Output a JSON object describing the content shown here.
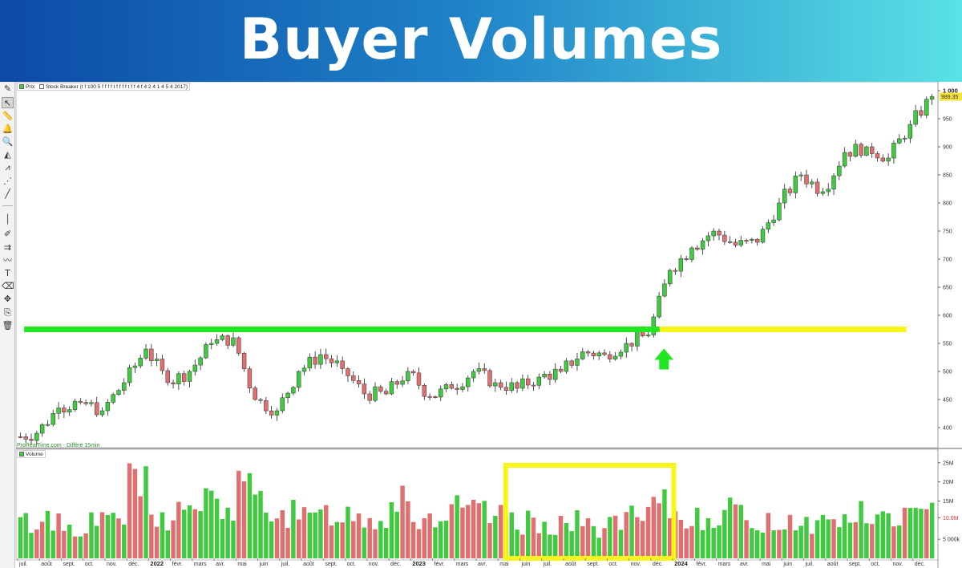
{
  "banner": {
    "title": "Buyer Volumes"
  },
  "toolbar": {
    "tools": [
      {
        "name": "pencil-icon",
        "glyph": "✎"
      },
      {
        "name": "cursor-icon",
        "glyph": "↖"
      },
      {
        "name": "ruler-icon",
        "glyph": "📏"
      },
      {
        "name": "bell-icon",
        "glyph": "🔔"
      },
      {
        "name": "zoom-icon",
        "glyph": "🔍"
      },
      {
        "name": "fibonacci-icon",
        "glyph": "◭"
      },
      {
        "name": "trend-tool-icon",
        "glyph": "⩘"
      },
      {
        "name": "anchor-line-icon",
        "glyph": "⋰"
      },
      {
        "name": "line-icon",
        "glyph": "╱"
      },
      {
        "name": "vertical-line-icon",
        "glyph": "│"
      },
      {
        "name": "brush-icon",
        "glyph": "✐"
      },
      {
        "name": "horizontal-line-icon",
        "glyph": "⇉"
      },
      {
        "name": "wave-icon",
        "glyph": "〰"
      },
      {
        "name": "text-icon",
        "glyph": "T"
      },
      {
        "name": "eraser-icon",
        "glyph": "⌫"
      },
      {
        "name": "move-icon",
        "glyph": "✥"
      },
      {
        "name": "copy-icon",
        "glyph": "⎘"
      },
      {
        "name": "trash-icon",
        "glyph": "🗑"
      }
    ]
  },
  "price_panel": {
    "legend_price": "Prix",
    "legend_indicator": "Stock Breaker (t f 100 5 f f f f t f f f f t f f 4 f 4 2 4 1 4 5 4 2017)",
    "credit": "ProRealTime.com - Différé 15min",
    "last_price": "989.35",
    "colors": {
      "up": "#3fca3f",
      "down": "#e06f6f",
      "support_line": "#22e622",
      "projection_line": "#f6f61a",
      "arrow": "#22e622",
      "highlight_box": "#f6f61a"
    }
  },
  "volume_panel": {
    "legend": "Volume",
    "last_volume": "10.6M"
  },
  "chart_data": [
    {
      "type": "candlestick",
      "title": "",
      "ylim": [
        370,
        1010
      ],
      "y_ticks": [
        "1 000",
        "950",
        "900",
        "850",
        "800",
        "750",
        "700",
        "650",
        "600",
        "550",
        "500",
        "450",
        "400"
      ],
      "x_month_labels": [
        "juil.",
        "août",
        "sept.",
        "oct.",
        "nov.",
        "déc.",
        "2022",
        "févr.",
        "mars",
        "avr.",
        "mai",
        "juin",
        "juil.",
        "août",
        "sept.",
        "oct.",
        "nov.",
        "déc.",
        "2023",
        "févr.",
        "mars",
        "avr.",
        "mai",
        "juin",
        "juil.",
        "août",
        "sept.",
        "oct.",
        "nov.",
        "déc.",
        "2024",
        "févr.",
        "mars",
        "avr.",
        "mai",
        "juin",
        "juil.",
        "août",
        "sept.",
        "oct.",
        "nov.",
        "déc."
      ],
      "bold_labels": [
        "2022",
        "2023",
        "2024"
      ],
      "support_level": 575,
      "support_span": [
        "2021-07",
        "2023-12"
      ],
      "projection_span": [
        "2023-12",
        "2024-12"
      ],
      "breakout_arrow_month": "2023-12",
      "monthly_close": [
        390,
        435,
        445,
        430,
        480,
        540,
        480,
        500,
        550,
        560,
        450,
        430,
        500,
        530,
        505,
        460,
        460,
        500,
        455,
        470,
        500,
        480,
        470,
        490,
        500,
        535,
        530,
        550,
        565,
        680,
        720,
        750,
        725,
        730,
        800,
        850,
        820,
        890,
        900,
        880,
        940,
        989.35
      ]
    },
    {
      "type": "bar",
      "title": "",
      "ylabel": "",
      "ylim": [
        0,
        26
      ],
      "unit": "M",
      "y_ticks": [
        "25M",
        "20M",
        "15M",
        "10.6M",
        "5 000k"
      ],
      "highlight_range": [
        "2023-05",
        "2023-12"
      ],
      "monthly_volume": [
        9,
        10,
        8,
        9,
        11,
        18,
        10,
        12,
        14,
        13,
        17,
        14,
        11,
        10,
        12,
        11,
        10,
        17,
        10,
        11,
        12,
        11,
        10,
        9,
        9,
        9,
        8,
        9,
        10,
        13,
        10,
        11,
        12,
        10,
        9,
        10,
        9,
        10,
        11,
        10,
        11,
        10.6
      ]
    }
  ]
}
